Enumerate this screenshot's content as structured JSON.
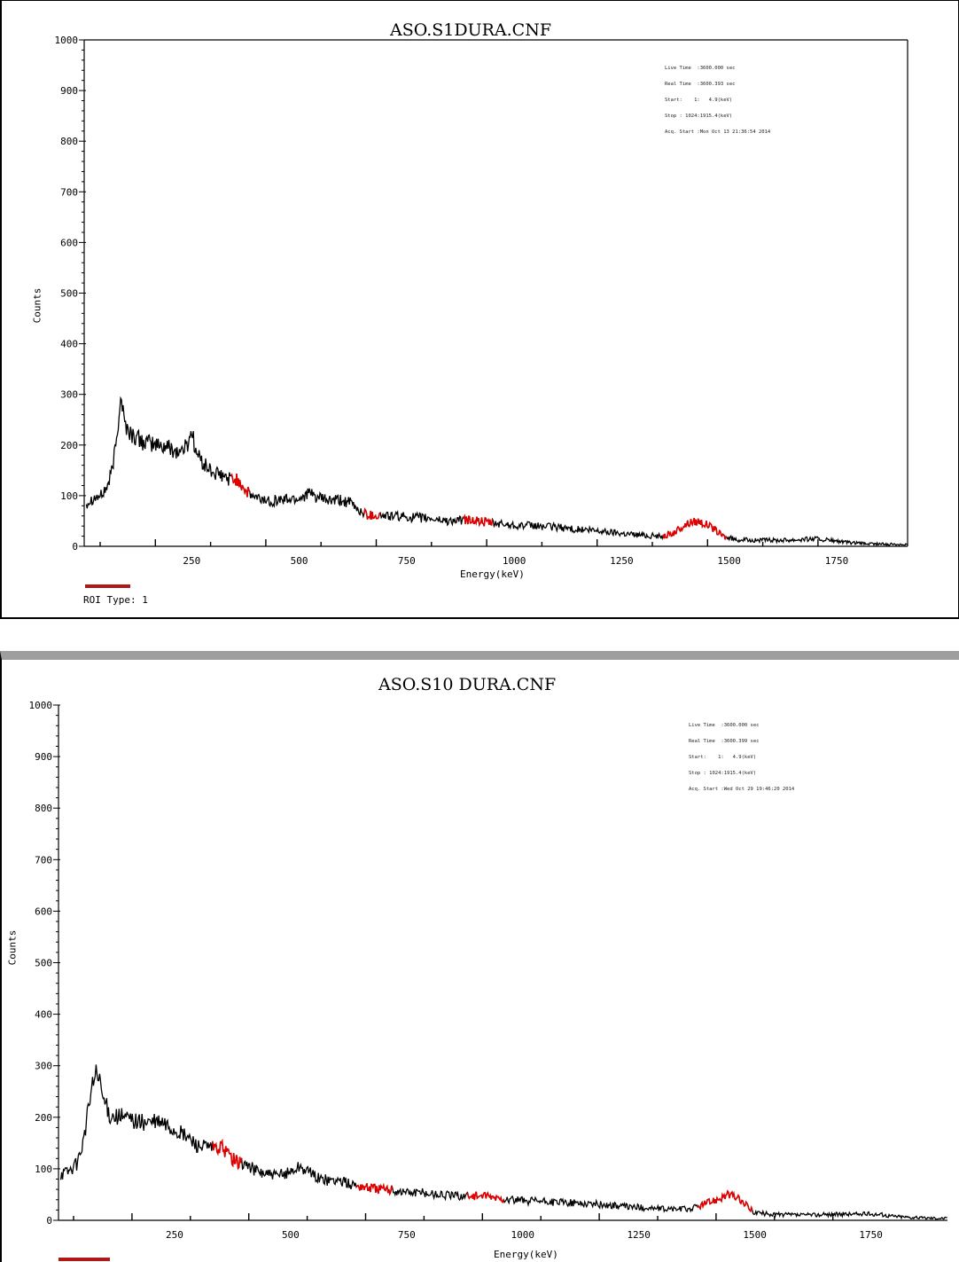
{
  "colors": {
    "spectrum": "#000000",
    "roi": "#e00000",
    "roi_legend": "#b01818",
    "frame_gray": "#9e9e9e"
  },
  "chart_data": [
    {
      "type": "line",
      "title": "ASO.S1DURA.CNF",
      "xlabel": "Energy(keV)",
      "ylabel": "Counts",
      "xlim": [
        0,
        1915
      ],
      "ylim": [
        0,
        1000
      ],
      "xticks": [
        "250",
        "500",
        "750",
        "1000",
        "1250",
        "1500",
        "1750"
      ],
      "yticks": [
        "0",
        "100",
        "200",
        "300",
        "400",
        "500",
        "600",
        "700",
        "800",
        "900",
        "1000"
      ],
      "info_lines": [
        "Live Time  :3600.000 sec",
        "Real Time  :3600.393 sec",
        "Start:    1:   4.9(keV)",
        "Stop : 1024:1915.4(keV)",
        "Acq. Start :Mon Oct 13 21:36:54 2014"
      ],
      "legend": {
        "label": "ROI Type: 1"
      },
      "spectrum_envelope": [
        [
          5,
          85
        ],
        [
          20,
          95
        ],
        [
          40,
          100
        ],
        [
          55,
          120
        ],
        [
          65,
          150
        ],
        [
          75,
          210
        ],
        [
          85,
          300
        ],
        [
          95,
          240
        ],
        [
          110,
          220
        ],
        [
          140,
          205
        ],
        [
          170,
          200
        ],
        [
          200,
          195
        ],
        [
          220,
          185
        ],
        [
          240,
          200
        ],
        [
          250,
          230
        ],
        [
          260,
          185
        ],
        [
          280,
          160
        ],
        [
          300,
          145
        ],
        [
          330,
          135
        ],
        [
          360,
          130
        ],
        [
          380,
          105
        ],
        [
          400,
          95
        ],
        [
          430,
          90
        ],
        [
          460,
          92
        ],
        [
          500,
          95
        ],
        [
          520,
          105
        ],
        [
          545,
          95
        ],
        [
          570,
          90
        ],
        [
          600,
          90
        ],
        [
          620,
          85
        ],
        [
          640,
          70
        ],
        [
          660,
          62
        ],
        [
          700,
          60
        ],
        [
          750,
          58
        ],
        [
          800,
          55
        ],
        [
          850,
          50
        ],
        [
          900,
          52
        ],
        [
          950,
          45
        ],
        [
          1000,
          42
        ],
        [
          1050,
          40
        ],
        [
          1100,
          38
        ],
        [
          1150,
          33
        ],
        [
          1200,
          30
        ],
        [
          1250,
          26
        ],
        [
          1300,
          22
        ],
        [
          1340,
          20
        ],
        [
          1370,
          25
        ],
        [
          1390,
          38
        ],
        [
          1410,
          48
        ],
        [
          1430,
          50
        ],
        [
          1450,
          42
        ],
        [
          1470,
          30
        ],
        [
          1490,
          18
        ],
        [
          1520,
          13
        ],
        [
          1560,
          12
        ],
        [
          1600,
          12
        ],
        [
          1650,
          13
        ],
        [
          1700,
          15
        ],
        [
          1740,
          11
        ],
        [
          1780,
          7
        ],
        [
          1820,
          5
        ],
        [
          1870,
          4
        ],
        [
          1915,
          4
        ]
      ],
      "roi_ranges_keV": [
        [
          340,
          385
        ],
        [
          650,
          690
        ],
        [
          880,
          950
        ],
        [
          1345,
          1495
        ]
      ]
    },
    {
      "type": "line",
      "title": "ASO.S10 DURA.CNF",
      "xlabel": "Energy(keV)",
      "ylabel": "Counts",
      "xlim": [
        0,
        1915
      ],
      "ylim": [
        0,
        1000
      ],
      "xticks": [
        "250",
        "500",
        "750",
        "1000",
        "1250",
        "1500",
        "1750"
      ],
      "yticks": [
        "0",
        "100",
        "200",
        "300",
        "400",
        "500",
        "600",
        "700",
        "800",
        "900",
        "1000"
      ],
      "info_lines": [
        "Live Time  :3600.000 sec",
        "Real Time  :3600.399 sec",
        "Start:    1:   4.9(keV)",
        "Stop : 1024:1915.4(keV)",
        "Acq. Start :Wed Oct 29 19:46:20 2014"
      ],
      "spectrum_envelope": [
        [
          5,
          90
        ],
        [
          20,
          95
        ],
        [
          40,
          110
        ],
        [
          55,
          160
        ],
        [
          70,
          250
        ],
        [
          82,
          290
        ],
        [
          95,
          240
        ],
        [
          110,
          205
        ],
        [
          140,
          200
        ],
        [
          180,
          190
        ],
        [
          220,
          190
        ],
        [
          250,
          175
        ],
        [
          280,
          160
        ],
        [
          300,
          145
        ],
        [
          330,
          140
        ],
        [
          355,
          140
        ],
        [
          380,
          115
        ],
        [
          400,
          110
        ],
        [
          430,
          95
        ],
        [
          470,
          85
        ],
        [
          500,
          95
        ],
        [
          520,
          105
        ],
        [
          545,
          90
        ],
        [
          570,
          78
        ],
        [
          600,
          78
        ],
        [
          630,
          70
        ],
        [
          660,
          65
        ],
        [
          700,
          60
        ],
        [
          750,
          55
        ],
        [
          800,
          52
        ],
        [
          850,
          48
        ],
        [
          900,
          48
        ],
        [
          950,
          42
        ],
        [
          1000,
          38
        ],
        [
          1050,
          36
        ],
        [
          1100,
          34
        ],
        [
          1150,
          32
        ],
        [
          1200,
          28
        ],
        [
          1250,
          25
        ],
        [
          1300,
          22
        ],
        [
          1360,
          22
        ],
        [
          1380,
          28
        ],
        [
          1410,
          38
        ],
        [
          1440,
          50
        ],
        [
          1460,
          45
        ],
        [
          1480,
          30
        ],
        [
          1500,
          15
        ],
        [
          1530,
          12
        ],
        [
          1600,
          10
        ],
        [
          1650,
          11
        ],
        [
          1700,
          12
        ],
        [
          1760,
          12
        ],
        [
          1800,
          8
        ],
        [
          1850,
          5
        ],
        [
          1915,
          4
        ]
      ],
      "roi_ranges_keV": [
        [
          330,
          395
        ],
        [
          640,
          720
        ],
        [
          880,
          960
        ],
        [
          1375,
          1495
        ]
      ]
    }
  ]
}
